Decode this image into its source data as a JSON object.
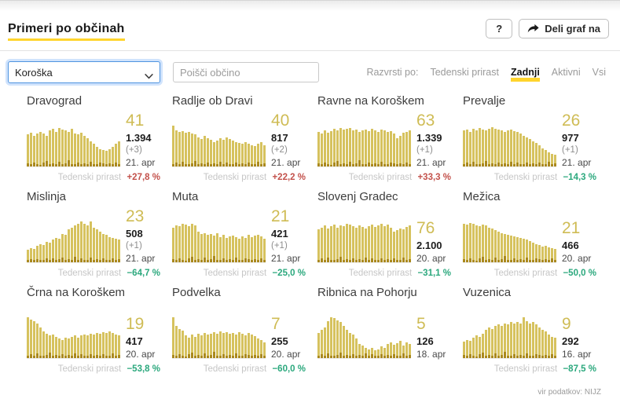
{
  "header": {
    "title": "Primeri po občinah",
    "help_button": "?",
    "share_button": "Deli graf na"
  },
  "filters": {
    "region_select": {
      "value": "Koroška"
    },
    "search": {
      "placeholder": "Poišči občino"
    },
    "sort": {
      "label": "Razvrsti po:",
      "options": [
        {
          "label": "Tedenski prirast",
          "active": false
        },
        {
          "label": "Zadnji",
          "active": true
        },
        {
          "label": "Aktivni",
          "active": false
        },
        {
          "label": "Vsi",
          "active": false
        }
      ]
    }
  },
  "weekly_label": "Tedenski prirast",
  "footer": {
    "source": "vir podatkov: NIJZ"
  },
  "colors": {
    "bar": "#d6c25e",
    "bar_dark": "#aa891e",
    "accent_yellow": "#ffd42d",
    "positive_red": "#c3514b",
    "negative_green": "#2ba87d",
    "big_number": "#cfbc55"
  },
  "municipalities": [
    {
      "name": "Dravograd",
      "last": "41",
      "total": "1.394",
      "delta": "(+3)",
      "date": "21. apr",
      "weekly_change": "+27,8 %",
      "trend": "up",
      "bars": [
        78,
        82,
        75,
        80,
        85,
        80,
        76,
        88,
        92,
        85,
        95,
        90,
        88,
        85,
        92,
        80,
        78,
        82,
        75,
        70,
        62,
        55,
        48,
        42,
        40,
        38,
        42,
        48,
        55,
        62
      ],
      "bases": [
        8,
        5,
        10,
        6,
        4,
        9,
        13,
        5,
        7,
        6,
        11,
        5,
        8,
        15,
        6,
        5,
        9,
        6,
        8,
        5,
        12,
        6,
        5,
        9,
        7,
        5,
        8,
        6,
        10,
        5
      ]
    },
    {
      "name": "Radlje ob Dravi",
      "last": "40",
      "total": "817",
      "delta": "(+2)",
      "date": "21. apr",
      "weekly_change": "+22,2 %",
      "trend": "up",
      "bars": [
        100,
        88,
        85,
        86,
        82,
        84,
        80,
        78,
        72,
        68,
        75,
        70,
        66,
        60,
        64,
        70,
        66,
        72,
        68,
        64,
        60,
        58,
        56,
        60,
        55,
        52,
        50,
        56,
        60,
        52
      ],
      "bases": [
        6,
        9,
        5,
        11,
        6,
        5,
        8,
        14,
        5,
        7,
        6,
        10,
        5,
        8,
        6,
        12,
        5,
        9,
        6,
        5,
        10,
        6,
        8,
        5,
        9,
        6,
        5,
        11,
        6,
        8
      ]
    },
    {
      "name": "Ravne na Koroškem",
      "last": "63",
      "total": "1.339",
      "delta": "(+1)",
      "date": "21. apr",
      "weekly_change": "+33,3 %",
      "trend": "up",
      "bars": [
        85,
        80,
        88,
        82,
        86,
        92,
        88,
        95,
        90,
        92,
        95,
        88,
        90,
        85,
        88,
        90,
        86,
        92,
        88,
        85,
        90,
        88,
        84,
        86,
        80,
        70,
        75,
        82,
        85,
        88
      ],
      "bases": [
        8,
        5,
        10,
        6,
        4,
        9,
        13,
        5,
        7,
        6,
        11,
        5,
        8,
        15,
        6,
        5,
        9,
        6,
        8,
        5,
        12,
        6,
        5,
        9,
        7,
        5,
        8,
        6,
        10,
        5
      ]
    },
    {
      "name": "Prevalje",
      "last": "26",
      "total": "977",
      "delta": "(+1)",
      "date": "21. apr",
      "weekly_change": "−14,3 %",
      "trend": "down",
      "bars": [
        88,
        90,
        85,
        92,
        88,
        95,
        90,
        88,
        93,
        96,
        92,
        90,
        88,
        85,
        88,
        90,
        86,
        84,
        80,
        76,
        72,
        68,
        62,
        58,
        52,
        45,
        40,
        35,
        30,
        28
      ],
      "bases": [
        6,
        9,
        5,
        11,
        6,
        5,
        8,
        14,
        5,
        7,
        6,
        10,
        5,
        8,
        6,
        12,
        5,
        9,
        6,
        5,
        10,
        6,
        8,
        5,
        9,
        6,
        5,
        11,
        6,
        8
      ]
    },
    {
      "name": "Mislinja",
      "last": "23",
      "total": "508",
      "delta": "(+1)",
      "date": "21. apr",
      "weekly_change": "−64,7 %",
      "trend": "down",
      "bars": [
        30,
        35,
        32,
        40,
        45,
        42,
        50,
        48,
        55,
        60,
        58,
        70,
        68,
        80,
        85,
        90,
        95,
        100,
        95,
        90,
        100,
        85,
        80,
        75,
        70,
        68,
        62,
        60,
        58,
        55
      ],
      "bases": [
        5,
        7,
        5,
        8,
        6,
        5,
        9,
        6,
        10,
        5,
        7,
        12,
        5,
        8,
        6,
        14,
        5,
        9,
        6,
        5,
        11,
        6,
        8,
        5,
        9,
        6,
        5,
        10,
        6,
        8
      ]
    },
    {
      "name": "Muta",
      "last": "21",
      "total": "421",
      "delta": "(+1)",
      "date": "21. apr",
      "weekly_change": "−25,0 %",
      "trend": "down",
      "bars": [
        85,
        90,
        88,
        95,
        92,
        88,
        95,
        90,
        75,
        70,
        72,
        68,
        70,
        65,
        72,
        62,
        68,
        60,
        64,
        66,
        62,
        58,
        64,
        60,
        68,
        62,
        66,
        68,
        64,
        58
      ],
      "bases": [
        8,
        5,
        10,
        6,
        4,
        9,
        13,
        5,
        7,
        6,
        11,
        5,
        8,
        15,
        6,
        5,
        9,
        6,
        8,
        5,
        12,
        6,
        5,
        9,
        7,
        5,
        8,
        6,
        10,
        5
      ]
    },
    {
      "name": "Slovenj Gradec",
      "last": "76",
      "total": "2.100",
      "delta": "",
      "date": "20. apr",
      "weekly_change": "−31,1 %",
      "trend": "down",
      "bars": [
        80,
        85,
        90,
        82,
        88,
        92,
        85,
        90,
        88,
        95,
        92,
        88,
        85,
        90,
        86,
        82,
        88,
        92,
        86,
        90,
        95,
        88,
        92,
        85,
        75,
        78,
        82,
        80,
        86,
        90
      ],
      "bases": [
        6,
        9,
        5,
        11,
        6,
        5,
        8,
        14,
        5,
        7,
        6,
        10,
        5,
        8,
        6,
        12,
        5,
        9,
        6,
        5,
        10,
        6,
        8,
        5,
        9,
        6,
        5,
        11,
        6,
        8
      ]
    },
    {
      "name": "Mežica",
      "last": "21",
      "total": "466",
      "delta": "",
      "date": "20. apr",
      "weekly_change": "−50,0 %",
      "trend": "down",
      "bars": [
        95,
        92,
        96,
        94,
        90,
        88,
        92,
        90,
        85,
        82,
        78,
        75,
        72,
        70,
        68,
        66,
        64,
        62,
        60,
        58,
        55,
        52,
        48,
        45,
        42,
        38,
        40,
        36,
        34,
        32
      ],
      "bases": [
        8,
        5,
        10,
        6,
        4,
        9,
        13,
        5,
        7,
        6,
        11,
        5,
        8,
        15,
        6,
        5,
        9,
        6,
        8,
        5,
        12,
        6,
        5,
        9,
        7,
        5,
        8,
        6,
        10,
        5
      ]
    },
    {
      "name": "Črna na Koroškem",
      "last": "19",
      "total": "417",
      "delta": "",
      "date": "20. apr",
      "weekly_change": "−53,8 %",
      "trend": "down",
      "bars": [
        100,
        95,
        90,
        85,
        75,
        65,
        60,
        55,
        58,
        52,
        48,
        45,
        50,
        48,
        52,
        55,
        50,
        55,
        58,
        56,
        60,
        58,
        62,
        60,
        64,
        62,
        66,
        62,
        58,
        55
      ],
      "bases": [
        6,
        9,
        5,
        11,
        6,
        5,
        8,
        14,
        5,
        7,
        6,
        10,
        5,
        8,
        6,
        12,
        5,
        9,
        6,
        5,
        10,
        6,
        8,
        5,
        9,
        6,
        5,
        11,
        6,
        8
      ]
    },
    {
      "name": "Podvelka",
      "last": "7",
      "total": "255",
      "delta": "",
      "date": "20. apr",
      "weekly_change": "−60,0 %",
      "trend": "down",
      "bars": [
        100,
        78,
        72,
        68,
        55,
        50,
        58,
        52,
        60,
        56,
        62,
        58,
        60,
        64,
        60,
        66,
        62,
        64,
        60,
        62,
        58,
        64,
        60,
        55,
        62,
        58,
        54,
        48,
        44,
        38
      ],
      "bases": [
        8,
        5,
        10,
        6,
        4,
        9,
        13,
        5,
        7,
        6,
        11,
        5,
        8,
        15,
        6,
        5,
        9,
        6,
        8,
        5,
        12,
        6,
        5,
        9,
        7,
        5,
        8,
        6,
        10,
        5
      ]
    },
    {
      "name": "Ribnica na Pohorju",
      "last": "5",
      "total": "126",
      "delta": "",
      "date": "18. apr",
      "weekly_change": "",
      "trend": null,
      "bars": [
        62,
        70,
        75,
        90,
        100,
        98,
        92,
        88,
        78,
        70,
        62,
        58,
        48,
        35,
        30,
        25,
        22,
        25,
        20,
        22,
        28,
        25,
        35,
        38,
        32,
        36,
        42,
        30,
        38,
        35
      ],
      "bases": [
        6,
        9,
        5,
        11,
        6,
        5,
        8,
        14,
        5,
        7,
        6,
        10,
        5,
        8,
        6,
        12,
        5,
        9,
        6,
        5,
        10,
        6,
        8,
        5,
        9,
        6,
        5,
        11,
        6,
        8
      ]
    },
    {
      "name": "Vuzenica",
      "last": "9",
      "total": "292",
      "delta": "",
      "date": "16. apr",
      "weekly_change": "−87,5 %",
      "trend": "down",
      "bars": [
        40,
        45,
        42,
        50,
        55,
        52,
        60,
        70,
        75,
        72,
        78,
        82,
        78,
        85,
        82,
        88,
        85,
        88,
        85,
        100,
        90,
        85,
        88,
        82,
        75,
        70,
        65,
        58,
        52,
        50
      ],
      "bases": [
        8,
        5,
        10,
        6,
        4,
        9,
        13,
        5,
        7,
        6,
        11,
        5,
        8,
        15,
        6,
        5,
        9,
        6,
        8,
        5,
        12,
        6,
        5,
        9,
        7,
        5,
        8,
        6,
        10,
        5
      ]
    }
  ]
}
